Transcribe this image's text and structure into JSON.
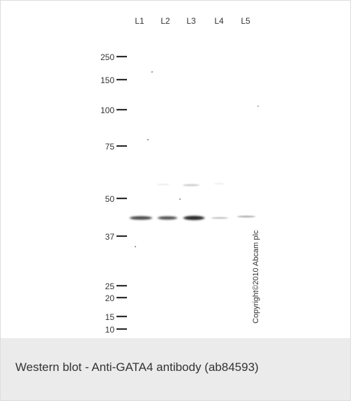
{
  "blot": {
    "lanes": [
      "L1",
      "L2",
      "L3",
      "L4",
      "L5"
    ],
    "markers": [
      "250",
      "150",
      "100",
      "75",
      "50",
      "37",
      "25",
      "20",
      "15",
      "10"
    ],
    "copyright": "Copyright©2010 Abcam plc"
  },
  "caption": {
    "text": "Western blot - Anti-GATA4 antibody (ab84593)"
  },
  "colors": {
    "caption_background": "#ebebeb",
    "text": "#333333",
    "band": "#2a2a2a"
  }
}
